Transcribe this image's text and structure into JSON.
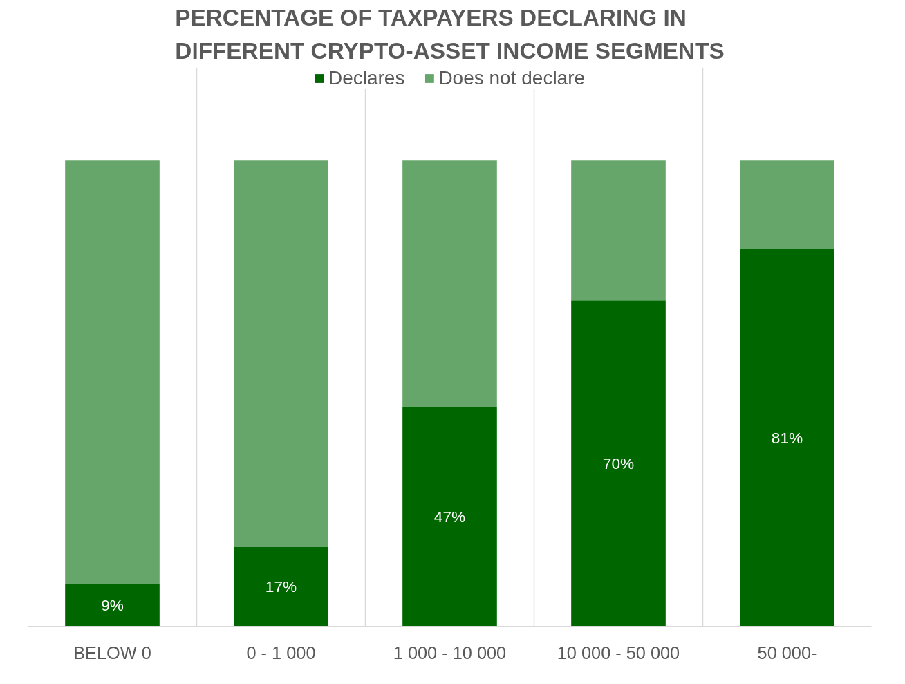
{
  "chart_data": {
    "type": "bar",
    "title": "PERCENTAGE OF TAXPAYERS DECLARING IN DIFFERENT CRYPTO-ASSET INCOME SEGMENTS",
    "categories": [
      "BELOW 0",
      "0 - 1 000",
      "1 000 - 10 000",
      "10 000 - 50 000",
      "50 000-"
    ],
    "stacked": true,
    "legend": "top",
    "grid": "x",
    "series": [
      {
        "name": "Declares",
        "color": "#006600",
        "values": [
          9,
          17,
          47,
          70,
          81
        ],
        "value_labels": [
          "9%",
          "17%",
          "47%",
          "70%",
          "81%"
        ]
      },
      {
        "name": "Does not declare",
        "color": "#66a66a",
        "values": [
          91,
          83,
          53,
          30,
          19
        ]
      }
    ]
  }
}
